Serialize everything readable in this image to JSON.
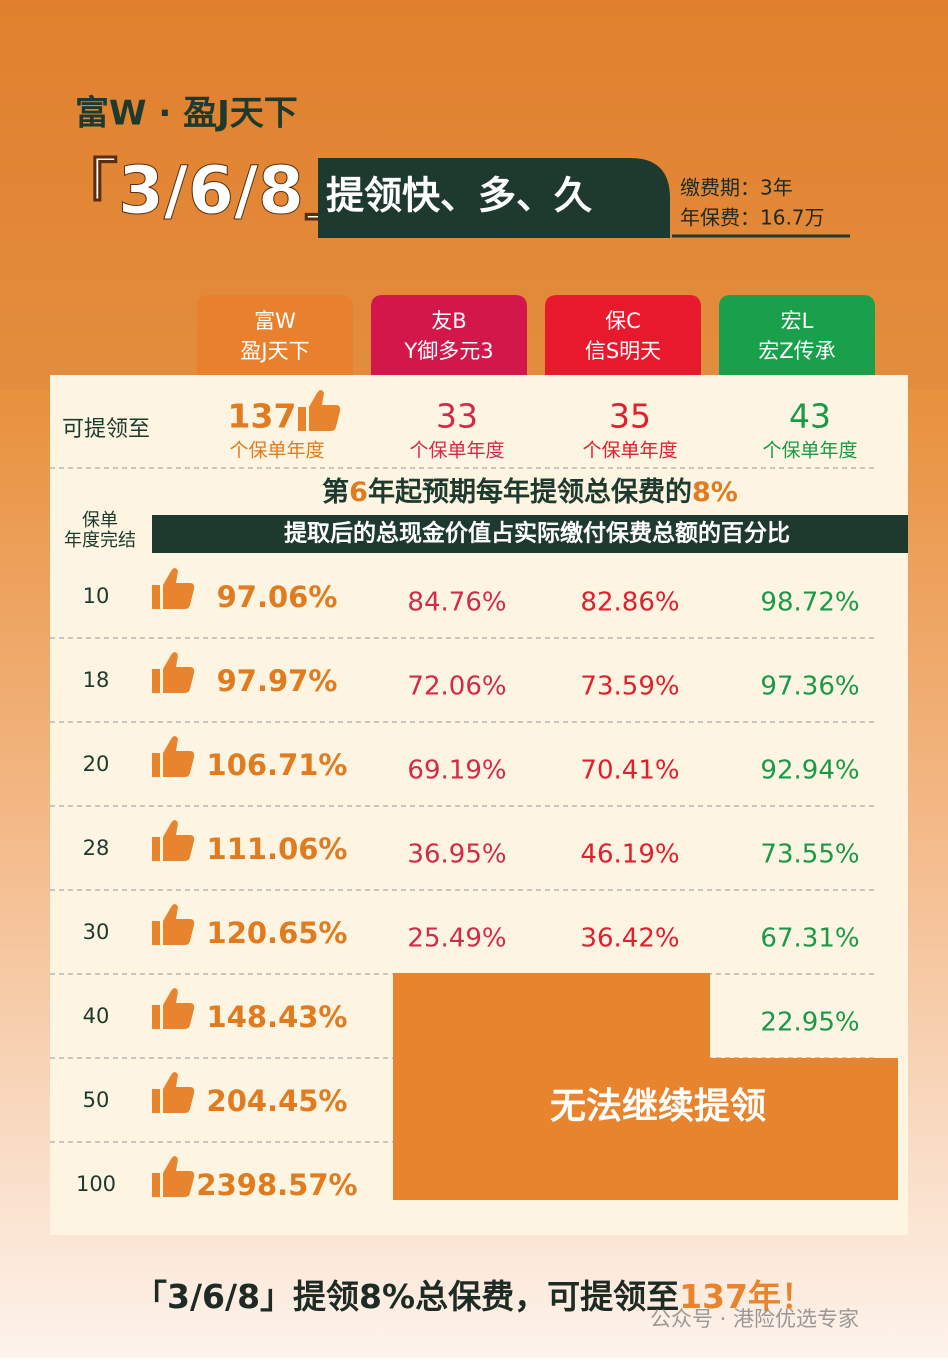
{
  "header": {
    "brand": "富W · 盈J天下",
    "slogan_bracket": "「3/6/8」",
    "slogan": "提领快、多、久",
    "info": [
      "缴费期：3年",
      "年保费：16.7万"
    ]
  },
  "products": [
    {
      "name": "富W",
      "plan": "盈J天下",
      "years": 137,
      "years_unit": "个保单年度"
    },
    {
      "name": "友B",
      "plan": "Y御多元3",
      "years": 33,
      "years_unit": "个保单年度"
    },
    {
      "name": "保C",
      "plan": "信S明天",
      "years": 35,
      "years_unit": "个保单年度"
    },
    {
      "name": "宏L",
      "plan": "宏Z传承",
      "years": 43,
      "years_unit": "个保单年度"
    }
  ],
  "table": {
    "years_label": "可提领至",
    "banner": [
      "第",
      "6",
      "年起预期每年提领总保费的",
      "8%"
    ],
    "subtitle": "提取后的总现金价值占实际缴付保费总额的百分比",
    "year_header": [
      "保单",
      "年度完结"
    ],
    "rows": [
      {
        "year": 10,
        "values": [
          "97.06%",
          "84.76%",
          "82.86%",
          "98.72%"
        ]
      },
      {
        "year": 18,
        "values": [
          "97.97%",
          "72.06%",
          "73.59%",
          "97.36%"
        ]
      },
      {
        "year": 20,
        "values": [
          "106.71%",
          "69.19%",
          "70.41%",
          "92.94%"
        ]
      },
      {
        "year": 28,
        "values": [
          "111.06%",
          "36.95%",
          "46.19%",
          "73.55%"
        ]
      },
      {
        "year": 30,
        "values": [
          "120.65%",
          "25.49%",
          "36.42%",
          "67.31%"
        ]
      },
      {
        "year": 40,
        "values": [
          "148.43%",
          null,
          null,
          "22.95%"
        ]
      },
      {
        "year": 50,
        "values": [
          "204.45%",
          null,
          null,
          null
        ]
      },
      {
        "year": 100,
        "values": [
          "2398.57%",
          null,
          null,
          null
        ]
      }
    ],
    "no_withdrawal": "无法继续提领"
  },
  "footer": [
    "「3/6/8」提领8%总保费，可提领至",
    "137年！"
  ],
  "watermark": "公众号 · 港险优选专家"
}
